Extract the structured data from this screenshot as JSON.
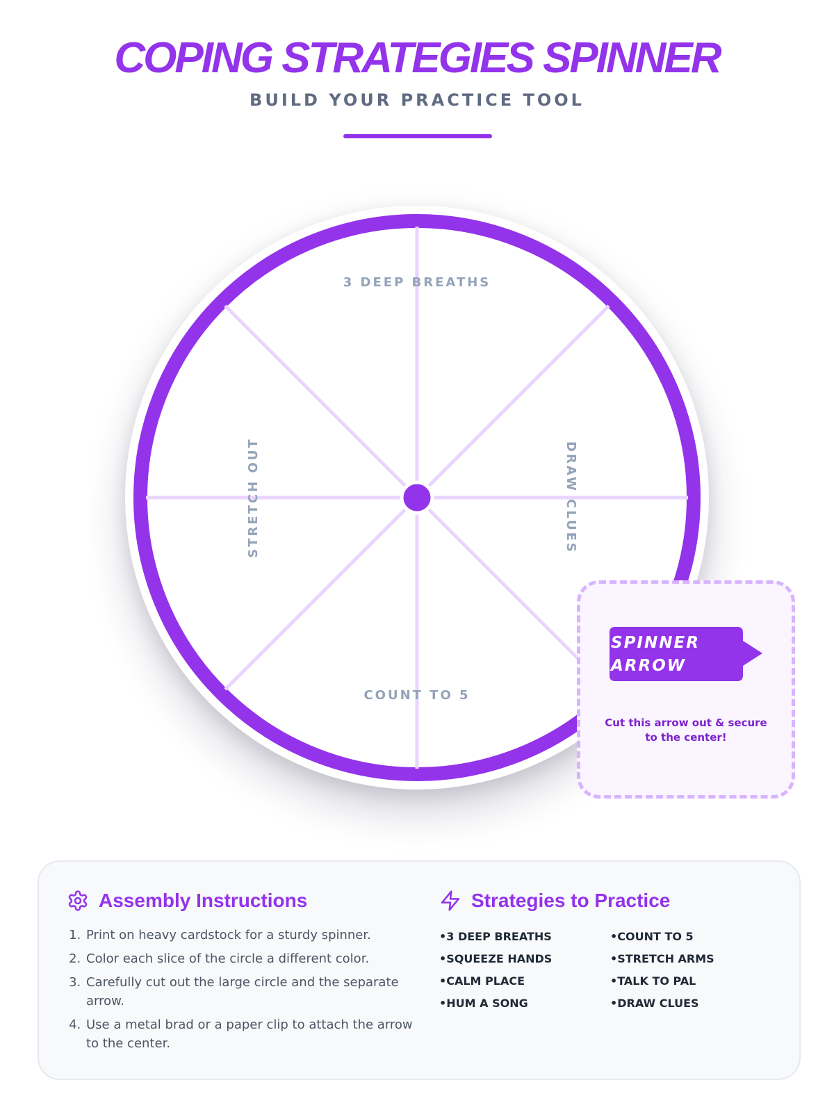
{
  "header": {
    "title": "COPING STRATEGIES SPINNER",
    "subtitle": "BUILD YOUR PRACTICE TOOL"
  },
  "wheel": {
    "slice_labels": {
      "top": "3 DEEP BREATHS",
      "right": "DRAW CLUES",
      "bottom": "COUNT TO 5",
      "left": "STRETCH OUT"
    }
  },
  "arrow_card": {
    "arrow_line1": "SPINNER",
    "arrow_line2": "ARROW",
    "note": "Cut this arrow out & secure to the center!"
  },
  "instructions": {
    "icon": "gear-icon",
    "heading": "Assembly Instructions",
    "steps": [
      "Print on heavy cardstock for a sturdy spinner.",
      "Color each slice of the circle a different color.",
      "Carefully cut out the large circle and the separate arrow.",
      "Use a metal brad or a paper clip to attach the arrow to the center."
    ]
  },
  "strategies": {
    "icon": "lightning-icon",
    "heading": "Strategies to Practice",
    "items": [
      "3 DEEP BREATHS",
      "COUNT TO 5",
      "SQUEEZE HANDS",
      "STRETCH ARMS",
      "CALM PLACE",
      "TALK TO PAL",
      "HUM A SONG",
      "DRAW CLUES"
    ]
  },
  "colors": {
    "accent": "#9333ea",
    "divider_lines": "#e9d5ff",
    "label_gray": "#94a3b8",
    "card_border": "#d8b4fe"
  }
}
